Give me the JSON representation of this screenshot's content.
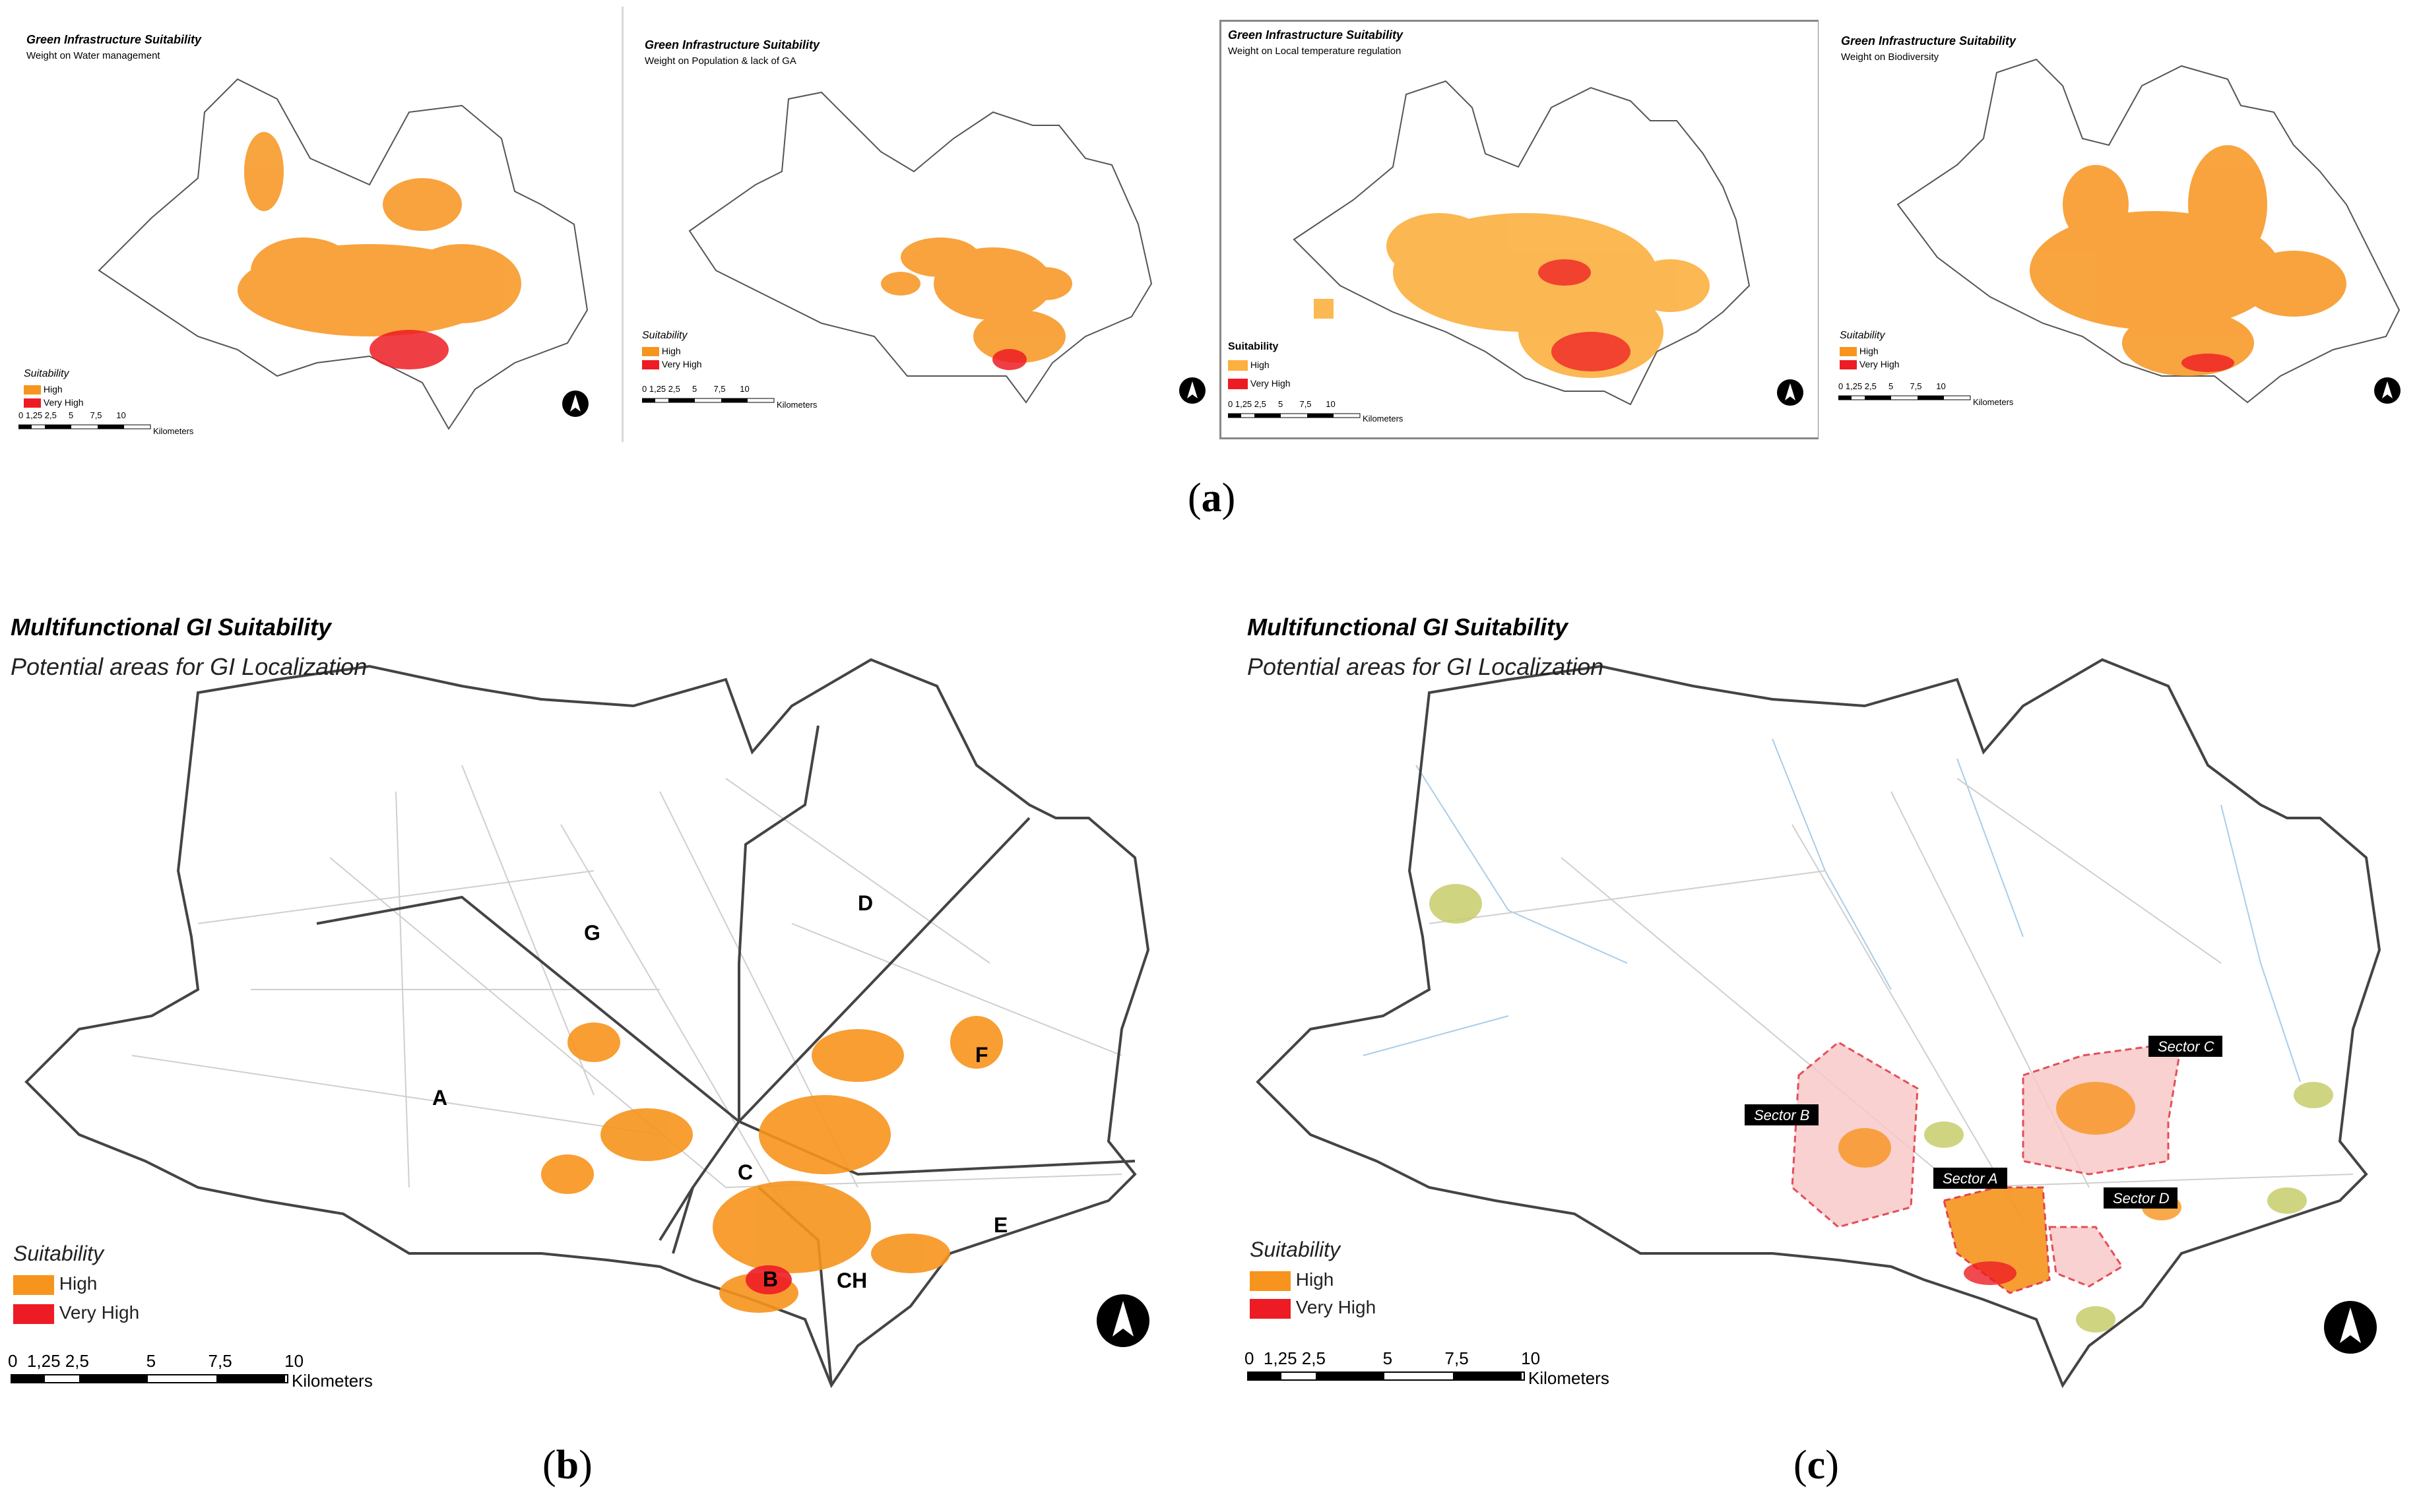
{
  "colors": {
    "high": "#f7941d",
    "very_high": "#ed1c24",
    "temp_high": "#fbb040",
    "outline": "#555555",
    "roads": "#c8c8c8",
    "rivers": "#a9cde8",
    "green_areas": "#c7cd6b",
    "sector_fill": "#f9c9c9",
    "sector_edge": "#e0303a"
  },
  "panel_a": {
    "maps": [
      {
        "title": "Green Infrastructure Suitability",
        "subtitle": "Weight on Water management",
        "suitability": "Suitability",
        "high": "High",
        "very_high": "Very High",
        "scale": [
          "0",
          "1,25",
          "2,5",
          "5",
          "7,5",
          "10"
        ],
        "scale_unit": "Kilometers",
        "north_icon": "north-arrow-icon"
      },
      {
        "title": "Green Infrastructure Suitability",
        "subtitle": "Weight on Population & lack of GA",
        "suitability": "Suitability",
        "high": "High",
        "very_high": "Very High",
        "scale": [
          "0",
          "1,25",
          "2,5",
          "5",
          "7,5",
          "10"
        ],
        "scale_unit": "Kilometers",
        "north_icon": "north-arrow-icon"
      },
      {
        "title": "Green Infrastructure Suitability",
        "subtitle": "Weight on Local temperature regulation",
        "suitability": "Suitability",
        "high": "High",
        "very_high": "Very High",
        "scale": [
          "0",
          "1,25",
          "2,5",
          "5",
          "7,5",
          "10"
        ],
        "scale_unit": "Kilometers",
        "north_icon": "north-arrow-icon"
      },
      {
        "title": "Green Infrastructure Suitability",
        "subtitle": "Weight on Biodiversity",
        "suitability": "Suitability",
        "high": "High",
        "very_high": "Very High",
        "scale": [
          "0",
          "1,25",
          "2,5",
          "5",
          "7,5",
          "10"
        ],
        "scale_unit": "Kilometers",
        "north_icon": "north-arrow-icon"
      }
    ]
  },
  "panel_b": {
    "title": "Multifunctional GI Suitability",
    "subtitle": "Potential areas for GI Localization",
    "suitability": "Suitability",
    "high": "High",
    "very_high": "Very High",
    "scale": [
      "0",
      "1,25",
      "2,5",
      "5",
      "7,5",
      "10"
    ],
    "scale_unit": "Kilometers",
    "zones": [
      "A",
      "B",
      "C",
      "CH",
      "D",
      "E",
      "F",
      "G"
    ],
    "north_icon": "north-arrow-icon"
  },
  "panel_c": {
    "title": "Multifunctional GI Suitability",
    "subtitle": "Potential areas for GI Localization",
    "suitability": "Suitability",
    "high": "High",
    "very_high": "Very High",
    "scale": [
      "0",
      "1,25",
      "2,5",
      "5",
      "7,5",
      "10"
    ],
    "scale_unit": "Kilometers",
    "sectors": [
      "Sector A",
      "Sector B",
      "Sector C",
      "Sector D"
    ],
    "north_icon": "north-arrow-icon"
  },
  "captions": {
    "a": {
      "open": "(",
      "letter": "a",
      "close": ")"
    },
    "b": {
      "open": "(",
      "letter": "b",
      "close": ")"
    },
    "c": {
      "open": "(",
      "letter": "c",
      "close": ")"
    }
  }
}
